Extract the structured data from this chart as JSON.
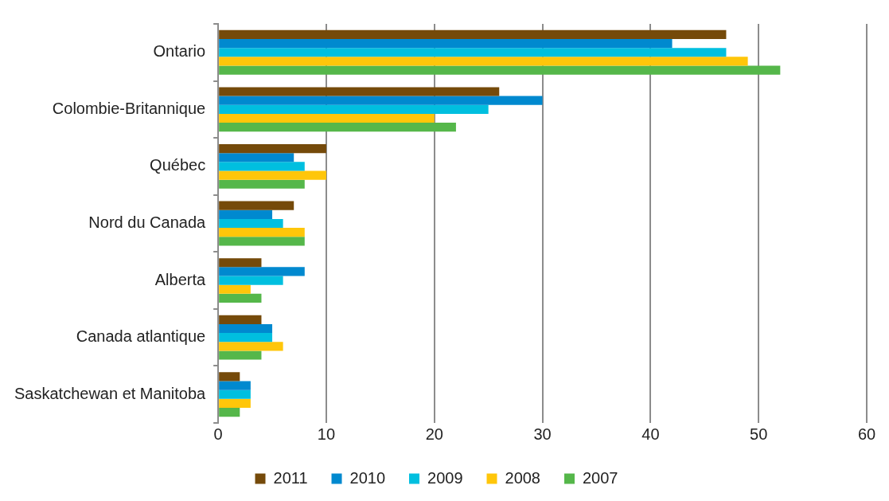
{
  "chart_data": {
    "type": "bar",
    "orientation": "horizontal",
    "categories": [
      "Ontario",
      "Colombie-Britannique",
      "Québec",
      "Nord du Canada",
      "Alberta",
      "Canada atlantique",
      "Saskatchewan et Manitoba"
    ],
    "series": [
      {
        "name": "2011",
        "color": "#754a0a",
        "values": [
          47,
          26,
          10,
          7,
          4,
          4,
          2
        ]
      },
      {
        "name": "2010",
        "color": "#0089cf",
        "values": [
          42,
          30,
          7,
          5,
          8,
          5,
          3
        ]
      },
      {
        "name": "2009",
        "color": "#00bfdf",
        "values": [
          47,
          25,
          8,
          6,
          6,
          5,
          3
        ]
      },
      {
        "name": "2008",
        "color": "#ffc60a",
        "values": [
          49,
          20,
          10,
          8,
          3,
          6,
          3
        ]
      },
      {
        "name": "2007",
        "color": "#55b74a",
        "values": [
          52,
          22,
          8,
          8,
          4,
          4,
          2
        ]
      }
    ],
    "xlim": [
      0,
      60
    ],
    "xticks": [
      0,
      10,
      20,
      30,
      40,
      50,
      60
    ],
    "grid": "x",
    "legend": "bottom"
  }
}
